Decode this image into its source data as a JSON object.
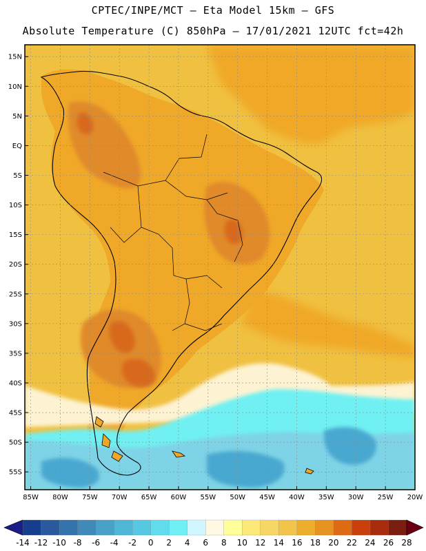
{
  "header": {
    "line1": "CPTEC/INPE/MCT –  Eta Model 15km – GFS",
    "line2": "Absolute Temperature (C) 850hPa – 17/01/2021 12UTC fct=42h"
  },
  "map": {
    "lon_range": [
      -86,
      -20
    ],
    "lat_range": [
      -58,
      17
    ],
    "lat_labels": [
      "15N",
      "10N",
      "5N",
      "EQ",
      "5S",
      "10S",
      "15S",
      "20S",
      "25S",
      "30S",
      "35S",
      "40S",
      "45S",
      "50S",
      "55S"
    ],
    "lat_values": [
      15,
      10,
      5,
      0,
      -5,
      -10,
      -15,
      -20,
      -25,
      -30,
      -35,
      -40,
      -45,
      -50,
      -55
    ],
    "lon_labels": [
      "85W",
      "80W",
      "75W",
      "70W",
      "65W",
      "60W",
      "55W",
      "50W",
      "45W",
      "40W",
      "35W",
      "30W",
      "25W",
      "20W"
    ],
    "lon_values": [
      -85,
      -80,
      -75,
      -70,
      -65,
      -60,
      -55,
      -50,
      -45,
      -40,
      -35,
      -30,
      -25,
      -20
    ],
    "colors": {
      "ocean_warm": "#f0c040",
      "land_warm": "#f0a828",
      "hot": "#e08a2a",
      "very_hot": "#d8691e",
      "cold_band": "#fdf3d2",
      "cyan": "#6ff0f2",
      "sky": "#7fd3e6",
      "blue": "#4aa8d0"
    }
  },
  "colorbar": {
    "labels": [
      "-14",
      "-12",
      "-10",
      "-8",
      "-6",
      "-4",
      "-2",
      "0",
      "2",
      "4",
      "6",
      "8",
      "10",
      "12",
      "14",
      "16",
      "18",
      "20",
      "22",
      "24",
      "26",
      "28"
    ],
    "colors": [
      "#173e8c",
      "#2a5a9e",
      "#3473ac",
      "#3f8ab9",
      "#4aa1c7",
      "#4fb6d6",
      "#55c8e2",
      "#60dcee",
      "#6ff0f4",
      "#d0f6ff",
      "#fff8e2",
      "#ffff99",
      "#fbe878",
      "#f6d766",
      "#f1c44a",
      "#ecae2c",
      "#e79322",
      "#df6a14",
      "#c9400c",
      "#a92d0c",
      "#7b1d0f"
    ],
    "low_arrow": "#1b1e86",
    "high_arrow": "#6a0012"
  }
}
